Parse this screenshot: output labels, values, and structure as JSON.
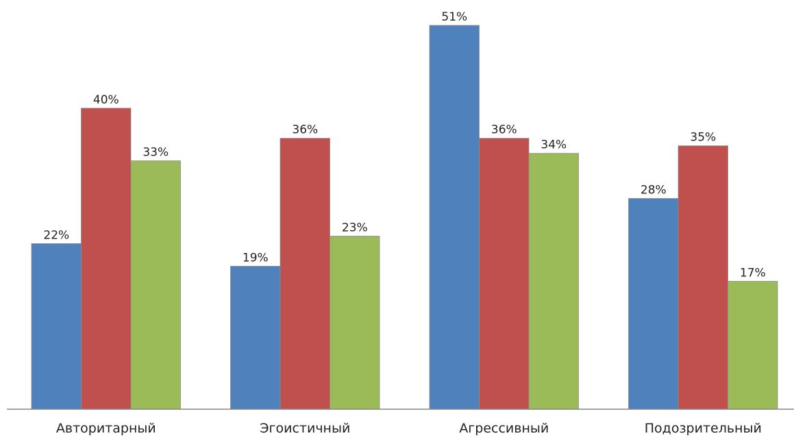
{
  "chart_data": {
    "type": "bar",
    "categories": [
      "Авторитарный",
      "Эгоистичный",
      "Агрессивный",
      "Подозрительный"
    ],
    "series": [
      {
        "values": [
          22,
          19,
          51,
          28
        ],
        "labels": [
          "22%",
          "19%",
          "51%",
          "28%"
        ]
      },
      {
        "values": [
          40,
          36,
          36,
          35
        ],
        "labels": [
          "40%",
          "36%",
          "36%",
          "35%"
        ]
      },
      {
        "values": [
          33,
          23,
          34,
          17
        ],
        "labels": [
          "33%",
          "23%",
          "34%",
          "17%"
        ]
      }
    ],
    "value_unit": "%",
    "colors": [
      "#4f81bd",
      "#c0504d",
      "#9bbb59"
    ],
    "ylim": [
      0,
      51
    ],
    "grid": false,
    "legend": "none"
  }
}
